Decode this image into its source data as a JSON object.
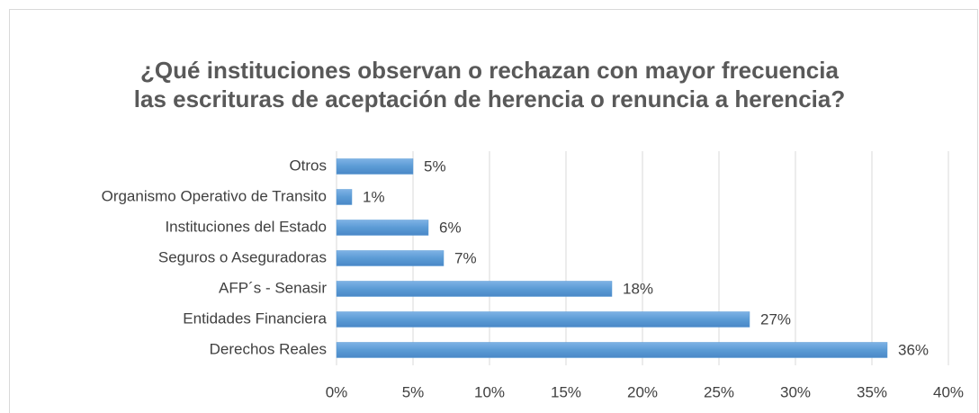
{
  "chart_data": {
    "type": "bar",
    "orientation": "horizontal",
    "title": "¿Qué instituciones observan o rechazan con mayor frecuencia las escrituras de aceptación de herencia o renuncia a herencia?",
    "categories": [
      "Otros",
      "Organismo Operativo de Transito",
      "Instituciones del Estado",
      "Seguros o Aseguradoras",
      "AFP´s - Senasir",
      "Entidades Financiera",
      "Derechos Reales"
    ],
    "values": [
      5,
      1,
      6,
      7,
      18,
      27,
      36
    ],
    "value_labels": [
      "5%",
      "1%",
      "6%",
      "7%",
      "18%",
      "27%",
      "36%"
    ],
    "color": "#5b9bd5",
    "xlim": [
      0,
      40
    ],
    "xticks": [
      {
        "value": 0,
        "label": "0%"
      },
      {
        "value": 5,
        "label": "5%"
      },
      {
        "value": 10,
        "label": "10%"
      },
      {
        "value": 15,
        "label": "15%"
      },
      {
        "value": 20,
        "label": "20%"
      },
      {
        "value": 25,
        "label": "25%"
      },
      {
        "value": 30,
        "label": "30%"
      },
      {
        "value": 35,
        "label": "35%"
      },
      {
        "value": 40,
        "label": "40%"
      }
    ],
    "grid": true
  }
}
